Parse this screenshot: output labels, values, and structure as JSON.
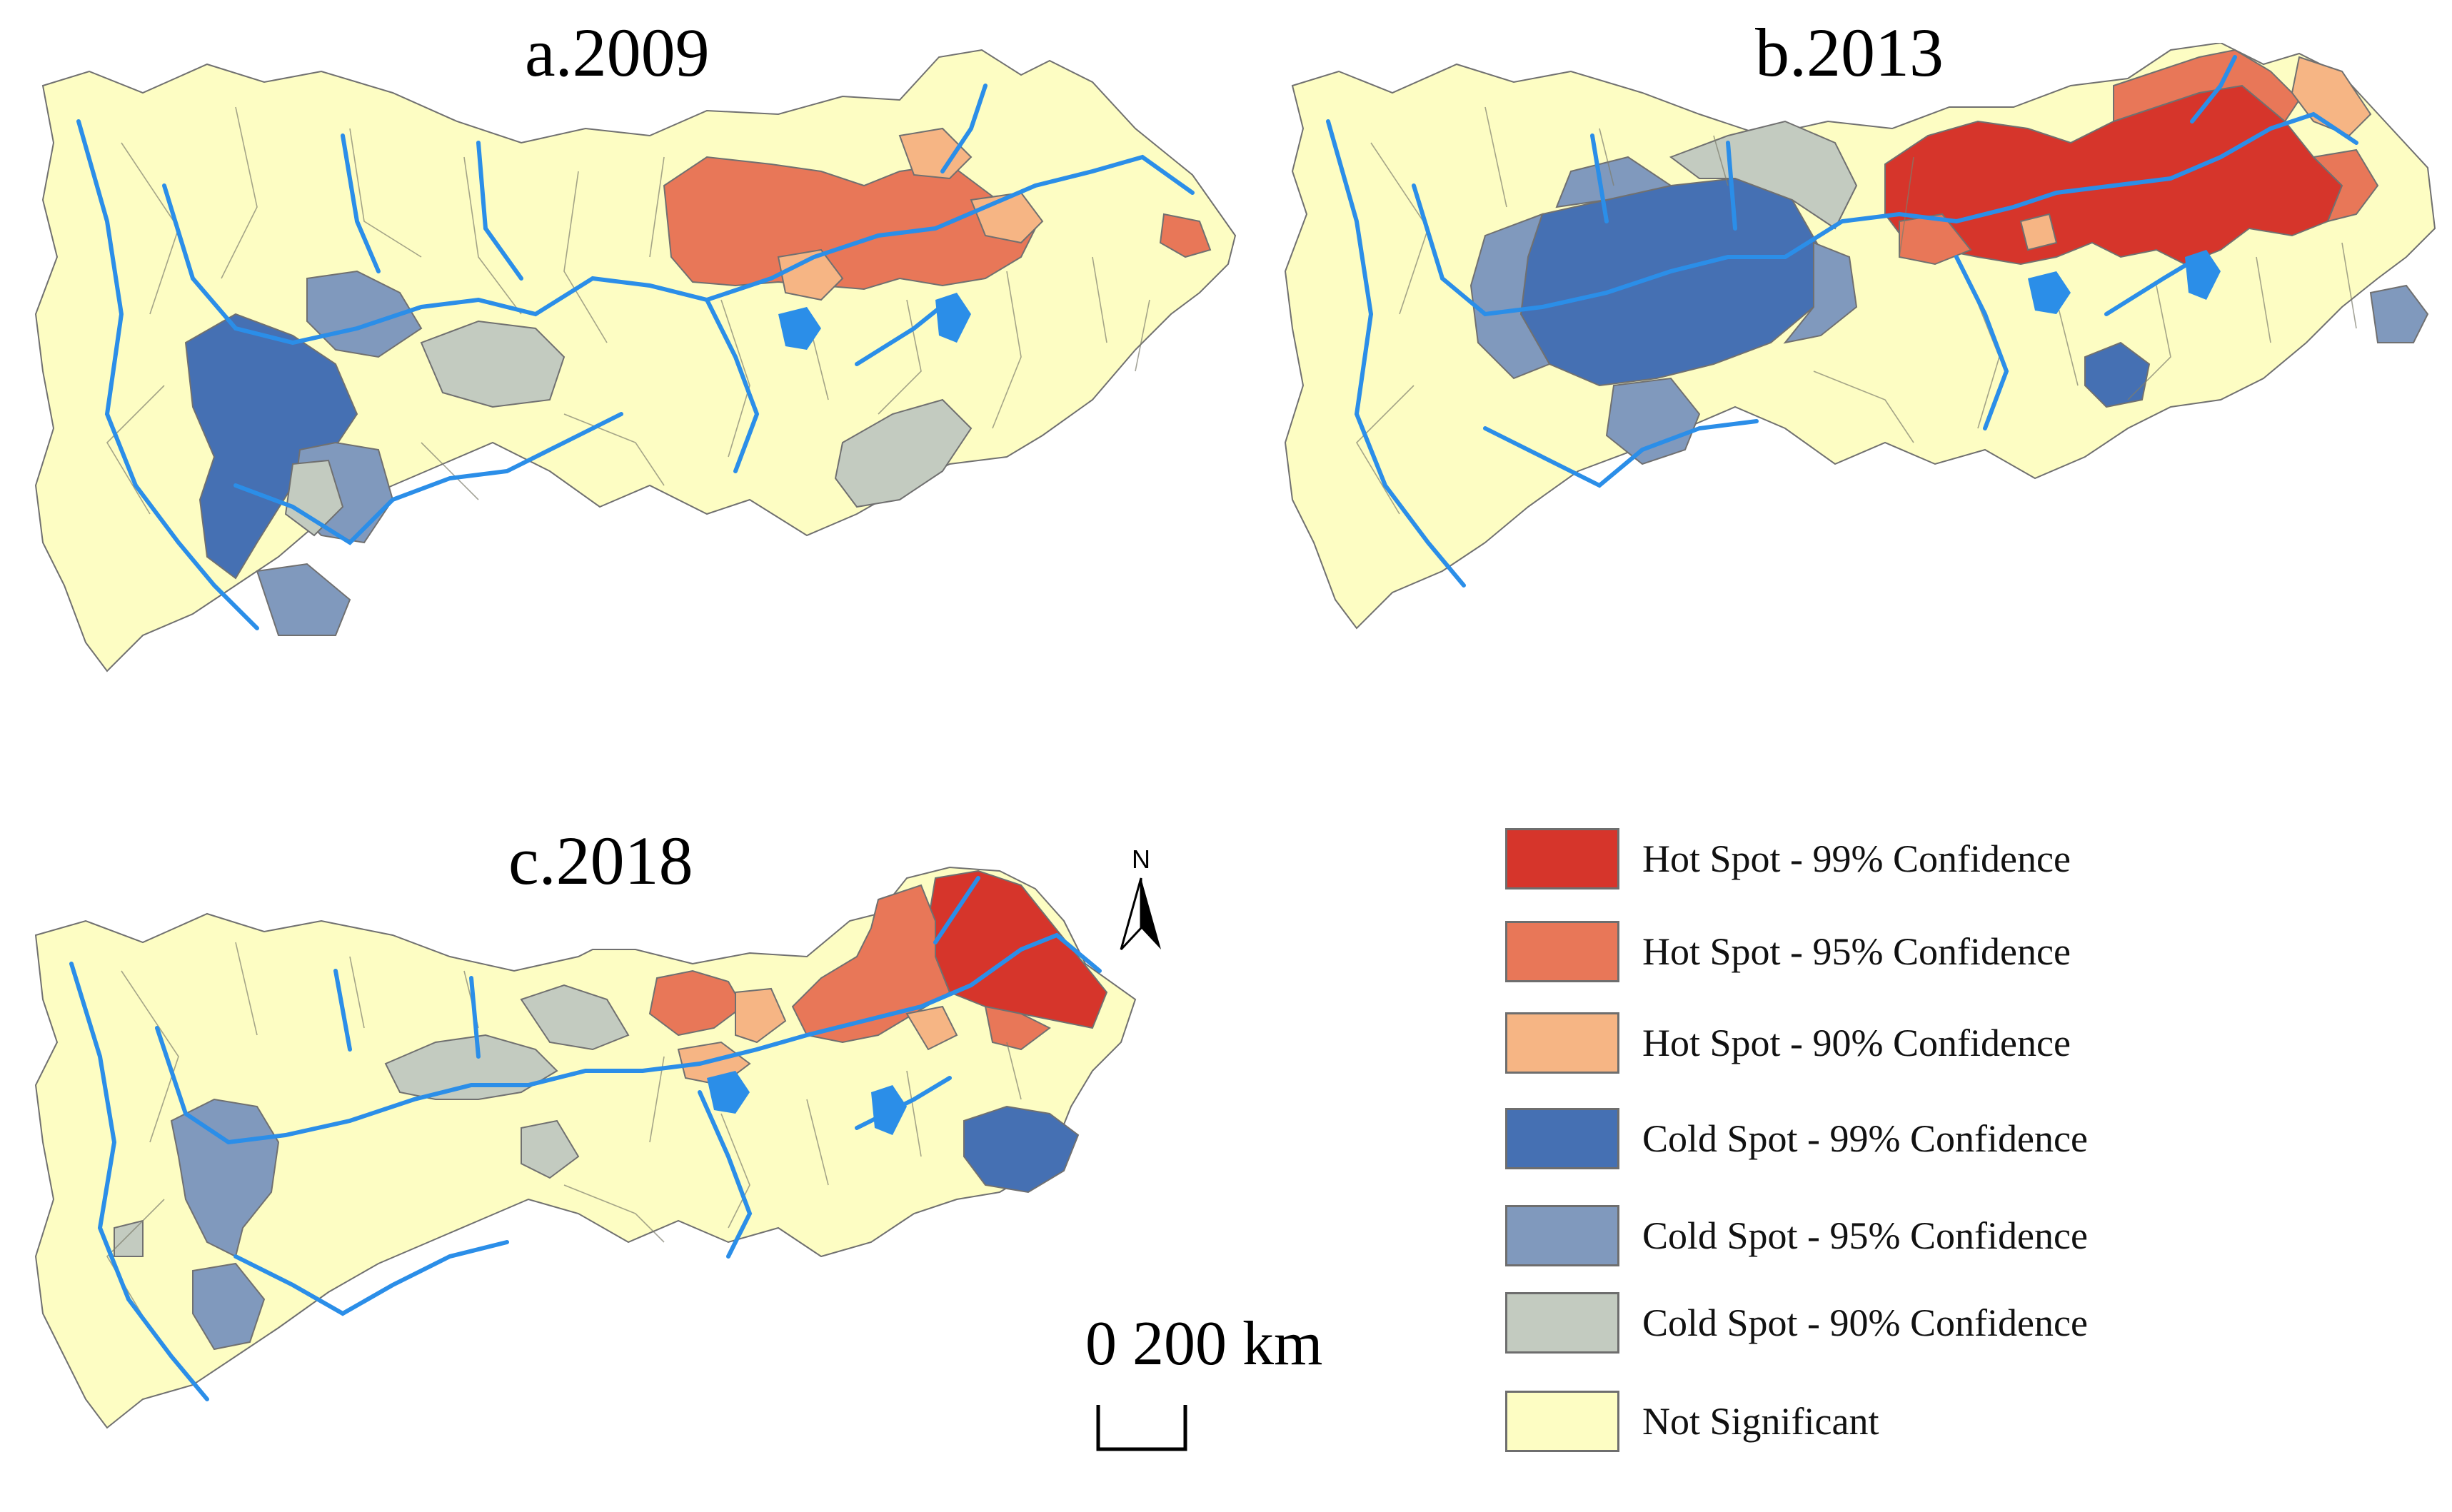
{
  "maps": [
    {
      "title": "a.2009"
    },
    {
      "title": "b.2013"
    },
    {
      "title": "c.2018"
    }
  ],
  "north_arrow": {
    "label": "N"
  },
  "scale_bar": {
    "label": "0 200 km"
  },
  "legend": {
    "items": [
      {
        "label": "Hot Spot - 99% Confidence",
        "color": "#d6352b"
      },
      {
        "label": "Hot Spot - 95% Confidence",
        "color": "#e87758"
      },
      {
        "label": "Hot Spot - 90% Confidence",
        "color": "#f6b584"
      },
      {
        "label": "Cold Spot - 99% Confidence",
        "color": "#4570b3"
      },
      {
        "label": "Cold Spot - 95% Confidence",
        "color": "#8099bd"
      },
      {
        "label": "Cold Spot - 90% Confidence",
        "color": "#c3cbc0"
      },
      {
        "label": "Not Significant",
        "color": "#fdfdc3"
      }
    ]
  },
  "colors": {
    "river": "#2b8ee8",
    "boundary": "#707070"
  }
}
